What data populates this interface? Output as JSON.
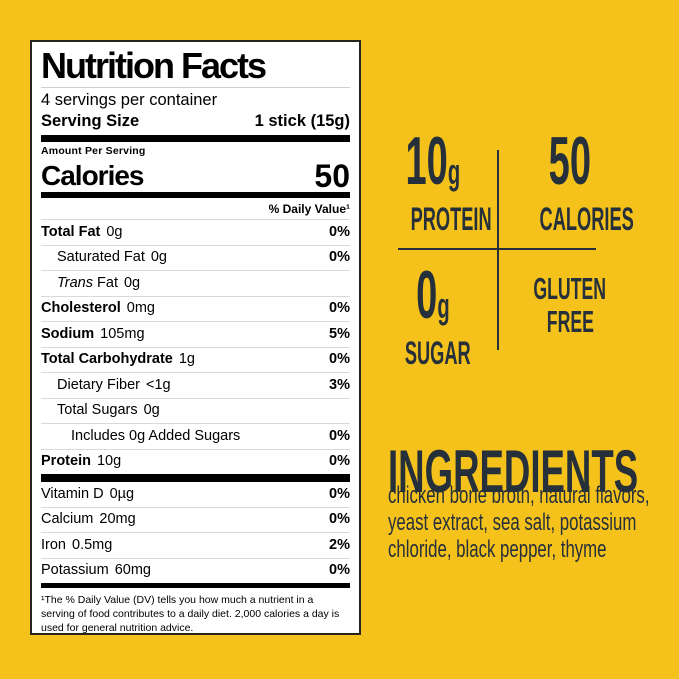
{
  "colors": {
    "background": "#F5C21C",
    "ink": "#26303A",
    "label_background": "#FFFFFF"
  },
  "nutrition_label": {
    "title": "Nutrition Facts",
    "servings_per_container": "4 servings per container",
    "serving_size_label": "Serving Size",
    "serving_size_value": "1 stick (15g)",
    "amount_per_serving": "Amount Per Serving",
    "calories_label": "Calories",
    "calories_value": "50",
    "daily_value_header": "% Daily Value¹",
    "rows": [
      {
        "italic": "",
        "name": "Total Fat",
        "amount": "0g",
        "dv": "0%",
        "bold": true,
        "indent": 0
      },
      {
        "italic": "",
        "name": "Saturated Fat",
        "amount": "0g",
        "dv": "0%",
        "bold": false,
        "indent": 1
      },
      {
        "italic": "Trans",
        "name": " Fat",
        "amount": "0g",
        "dv": "",
        "bold": false,
        "indent": 1
      },
      {
        "italic": "",
        "name": "Cholesterol",
        "amount": "0mg",
        "dv": "0%",
        "bold": true,
        "indent": 0
      },
      {
        "italic": "",
        "name": "Sodium",
        "amount": "105mg",
        "dv": "5%",
        "bold": true,
        "indent": 0
      },
      {
        "italic": "",
        "name": "Total Carbohydrate",
        "amount": "1g",
        "dv": "0%",
        "bold": true,
        "indent": 0
      },
      {
        "italic": "",
        "name": "Dietary Fiber",
        "amount": "<1g",
        "dv": "3%",
        "bold": false,
        "indent": 1
      },
      {
        "italic": "",
        "name": "Total Sugars",
        "amount": "0g",
        "dv": "",
        "bold": false,
        "indent": 1
      },
      {
        "italic": "",
        "name": "Includes 0g Added Sugars",
        "amount": "",
        "dv": "0%",
        "bold": false,
        "indent": 2
      },
      {
        "italic": "",
        "name": "Protein",
        "amount": "10g",
        "dv": "0%",
        "bold": true,
        "indent": 0
      }
    ],
    "vitamins": [
      {
        "italic": "",
        "name": "Vitamin D",
        "amount": "0µg",
        "dv": "0%",
        "bold": false,
        "indent": 0
      },
      {
        "italic": "",
        "name": "Calcium",
        "amount": "20mg",
        "dv": "0%",
        "bold": false,
        "indent": 0
      },
      {
        "italic": "",
        "name": "Iron",
        "amount": "0.5mg",
        "dv": "2%",
        "bold": false,
        "indent": 0
      },
      {
        "italic": "",
        "name": "Potassium",
        "amount": "60mg",
        "dv": "0%",
        "bold": false,
        "indent": 0
      }
    ],
    "footnote": "¹The % Daily Value (DV) tells you how much a nutrient in a serving of food contributes to a daily diet. 2,000 calories a day is used for general nutrition advice."
  },
  "highlights": {
    "protein": {
      "value": "10",
      "unit": "g",
      "label": "PROTEIN"
    },
    "calories": {
      "value": "50",
      "unit": "",
      "label": "CALORIES"
    },
    "sugar": {
      "value": "0",
      "unit": "g",
      "label": "SUGAR"
    },
    "gluten": {
      "line1": "GLUTEN",
      "line2": "FREE"
    }
  },
  "ingredients": {
    "heading": "INGREDIENTS",
    "text": "chicken bone broth, natural flavors, yeast extract, sea salt, potassium chloride, black pepper, thyme"
  }
}
